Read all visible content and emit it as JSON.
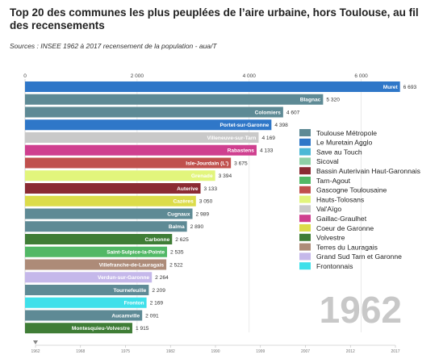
{
  "title": "Top 20 des communes les plus peuplées de l’aire urbaine, hors Toulouse, au fil des recensements",
  "subtitle": "Sources : INSEE 1962 à 2017 recensement de la population - aua/T",
  "chart_data": {
    "type": "bar",
    "orientation": "horizontal",
    "xlim": [
      0,
      7000
    ],
    "xticks": [
      "0",
      "2 000",
      "4 000",
      "6 000"
    ],
    "xtick_values": [
      0,
      2000,
      4000,
      6000
    ],
    "bars": [
      {
        "name": "Muret",
        "value": 6693,
        "value_label": "6 693",
        "group": "Le Muretain Agglo"
      },
      {
        "name": "Blagnac",
        "value": 5320,
        "value_label": "5 320",
        "group": "Toulouse Métropole"
      },
      {
        "name": "Colomiers",
        "value": 4607,
        "value_label": "4 607",
        "group": "Toulouse Métropole"
      },
      {
        "name": "Portet-sur-Garonne",
        "value": 4398,
        "value_label": "4 398",
        "group": "Le Muretain Agglo"
      },
      {
        "name": "Villeneuve-sur-Tarn",
        "value": 4169,
        "value_label": "4 169",
        "group": "Val'Aïgo"
      },
      {
        "name": "Rabastens",
        "value": 4133,
        "value_label": "4 133",
        "group": "Gaillac-Graulhet"
      },
      {
        "name": "Isle-Jourdain (L')",
        "value": 3675,
        "value_label": "3 675",
        "group": "Gascogne Toulousaine"
      },
      {
        "name": "Grenade",
        "value": 3394,
        "value_label": "3 394",
        "group": "Hauts-Tolosans"
      },
      {
        "name": "Auterive",
        "value": 3133,
        "value_label": "3 133",
        "group": "Bassin Auterivain Haut-Garonnais"
      },
      {
        "name": "Cazères",
        "value": 3050,
        "value_label": "3 050",
        "group": "Coeur de Garonne"
      },
      {
        "name": "Cugnaux",
        "value": 2989,
        "value_label": "2 989",
        "group": "Toulouse Métropole"
      },
      {
        "name": "Balma",
        "value": 2890,
        "value_label": "2 890",
        "group": "Toulouse Métropole"
      },
      {
        "name": "Carbonne",
        "value": 2625,
        "value_label": "2 625",
        "group": "Volvestre"
      },
      {
        "name": "Saint-Sulpice-la-Pointe",
        "value": 2535,
        "value_label": "2 535",
        "group": "Tarn-Agout"
      },
      {
        "name": "Villefranche-de-Lauragais",
        "value": 2522,
        "value_label": "2 522",
        "group": "Terres du Lauragais"
      },
      {
        "name": "Verdun-sur-Garonne",
        "value": 2264,
        "value_label": "2 264",
        "group": "Grand Sud Tarn et Garonne"
      },
      {
        "name": "Tournefeuille",
        "value": 2209,
        "value_label": "2 209",
        "group": "Toulouse Métropole"
      },
      {
        "name": "Fronton",
        "value": 2169,
        "value_label": "2 169",
        "group": "Frontonnais"
      },
      {
        "name": "Aucamville",
        "value": 2091,
        "value_label": "2 091",
        "group": "Toulouse Métropole"
      },
      {
        "name": "Montesquieu-Volvestre",
        "value": 1915,
        "value_label": "1 915",
        "group": "Volvestre"
      }
    ],
    "legend": {
      "placement": "right",
      "entries": [
        {
          "label": "Toulouse Métropole",
          "color": "#5e8a95"
        },
        {
          "label": "Le Muretain Agglo",
          "color": "#2f77c8"
        },
        {
          "label": "Save au Touch",
          "color": "#4cb8d6"
        },
        {
          "label": "Sicoval",
          "color": "#8ed0a6"
        },
        {
          "label": "Bassin Auterivain Haut-Garonnais",
          "color": "#8b2b33"
        },
        {
          "label": "Tarn-Agout",
          "color": "#52b866"
        },
        {
          "label": "Gascogne Toulousaine",
          "color": "#c0504d"
        },
        {
          "label": "Hauts-Tolosans",
          "color": "#e2f57c"
        },
        {
          "label": "Val'Aïgo",
          "color": "#c9c9c9"
        },
        {
          "label": "Gaillac-Graulhet",
          "color": "#cf3f8f"
        },
        {
          "label": "Coeur de Garonne",
          "color": "#dcdc4a"
        },
        {
          "label": "Volvestre",
          "color": "#3f7d36"
        },
        {
          "label": "Terres du Lauragais",
          "color": "#ad8b78"
        },
        {
          "label": "Grand Sud Tarn et Garonne",
          "color": "#c5b8ea"
        },
        {
          "label": "Frontonnais",
          "color": "#3fe0ea"
        }
      ]
    },
    "year": "1962",
    "timeline_ticks": [
      "1962",
      "1968",
      "1975",
      "1982",
      "1990",
      "1999",
      "2007",
      "2012",
      "2017"
    ],
    "grid": true
  }
}
